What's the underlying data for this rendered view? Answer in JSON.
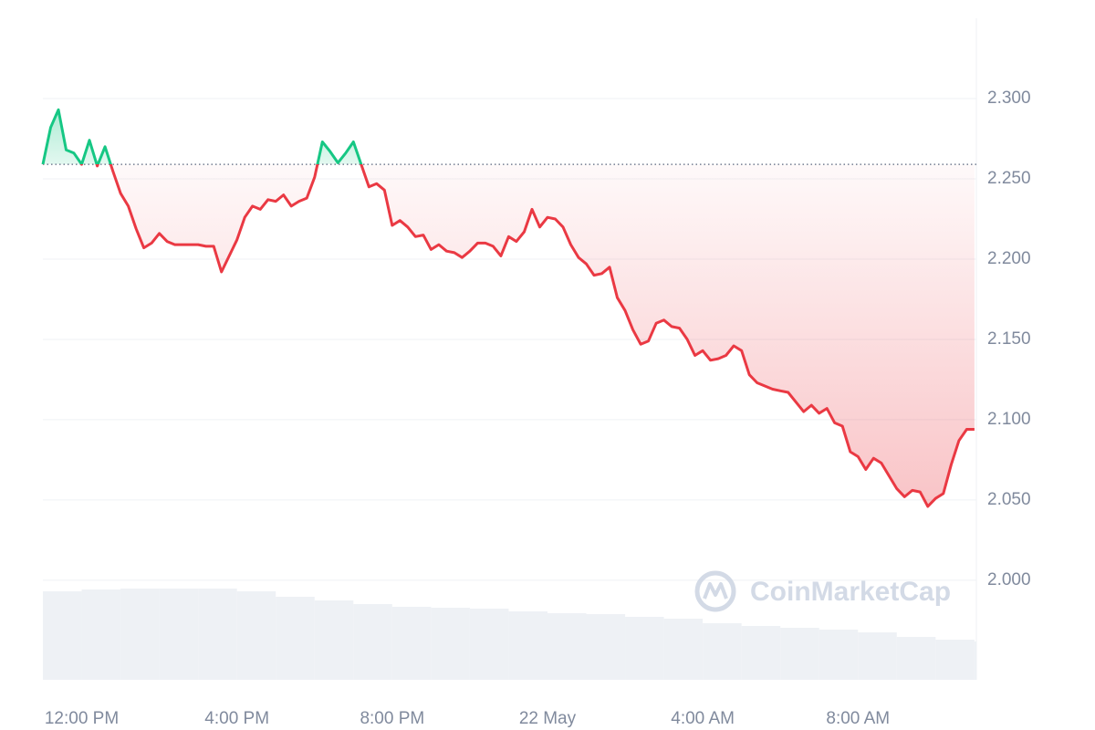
{
  "chart_data": {
    "type": "line",
    "x": [
      -1.0,
      -0.8,
      -0.6,
      -0.4,
      -0.2,
      0.0,
      0.2,
      0.4,
      0.6,
      0.8,
      1.0,
      1.2,
      1.4,
      1.6,
      1.8,
      2.0,
      2.2,
      2.4,
      2.6,
      2.8,
      3.0,
      3.2,
      3.4,
      3.6,
      3.8,
      4.0,
      4.2,
      4.4,
      4.6,
      4.8,
      5.0,
      5.2,
      5.4,
      5.6,
      5.8,
      6.0,
      6.2,
      6.4,
      6.6,
      6.8,
      7.0,
      7.2,
      7.4,
      7.6,
      7.8,
      8.0,
      8.2,
      8.4,
      8.6,
      8.8,
      9.0,
      9.2,
      9.4,
      9.6,
      9.8,
      10.0,
      10.2,
      10.4,
      10.6,
      10.8,
      11.0,
      11.2,
      11.4,
      11.6,
      11.8,
      12.0,
      12.2,
      12.4,
      12.6,
      12.8,
      13.0,
      13.2,
      13.4,
      13.6,
      13.8,
      14.0,
      14.2,
      14.4,
      14.6,
      14.8,
      15.0,
      15.2,
      15.4,
      15.6,
      15.8,
      16.0,
      16.2,
      16.4,
      16.6,
      16.8,
      17.0,
      17.2,
      17.4,
      17.6,
      17.8,
      18.0,
      18.2,
      18.4,
      18.6,
      18.8,
      19.0,
      19.2,
      19.4,
      19.6,
      19.8,
      20.0,
      20.2,
      20.4,
      20.6,
      20.8,
      21.0,
      21.2,
      21.4,
      21.6,
      21.8,
      22.0,
      22.2,
      22.4,
      22.6,
      22.8,
      23.0
    ],
    "values": [
      2.259,
      2.282,
      2.293,
      2.268,
      2.266,
      2.259,
      2.274,
      2.258,
      2.27,
      2.255,
      2.241,
      2.233,
      2.219,
      2.207,
      2.21,
      2.216,
      2.211,
      2.209,
      2.209,
      2.209,
      2.209,
      2.208,
      2.208,
      2.192,
      2.202,
      2.212,
      2.226,
      2.233,
      2.231,
      2.237,
      2.236,
      2.24,
      2.233,
      2.236,
      2.238,
      2.251,
      2.273,
      2.267,
      2.26,
      2.266,
      2.273,
      2.259,
      2.245,
      2.247,
      2.243,
      2.221,
      2.224,
      2.22,
      2.214,
      2.215,
      2.206,
      2.209,
      2.205,
      2.204,
      2.201,
      2.205,
      2.21,
      2.21,
      2.208,
      2.202,
      2.214,
      2.211,
      2.217,
      2.231,
      2.22,
      2.226,
      2.225,
      2.22,
      2.209,
      2.201,
      2.197,
      2.19,
      2.191,
      2.195,
      2.176,
      2.168,
      2.156,
      2.147,
      2.149,
      2.16,
      2.162,
      2.158,
      2.157,
      2.15,
      2.14,
      2.143,
      2.137,
      2.138,
      2.14,
      2.146,
      2.143,
      2.128,
      2.123,
      2.121,
      2.119,
      2.118,
      2.117,
      2.111,
      2.105,
      2.109,
      2.104,
      2.107,
      2.098,
      2.096,
      2.08,
      2.077,
      2.069,
      2.076,
      2.073,
      2.065,
      2.057,
      2.052,
      2.056,
      2.055,
      2.046,
      2.051,
      2.054,
      2.072,
      2.087,
      2.094,
      2.094
    ],
    "baseline": 2.259,
    "colors": {
      "up": "#16c784",
      "down": "#ea3943"
    },
    "xlim": [
      -1.0,
      23.05
    ],
    "xticks": [
      {
        "value": 0,
        "label": "12:00 PM"
      },
      {
        "value": 4,
        "label": "4:00 PM"
      },
      {
        "value": 8,
        "label": "8:00 PM"
      },
      {
        "value": 12,
        "label": "22 May"
      },
      {
        "value": 16,
        "label": "4:00 AM"
      },
      {
        "value": 20,
        "label": "8:00 AM"
      }
    ],
    "ylim": [
      1.938,
      2.35
    ],
    "yticks": [
      {
        "value": 2.0,
        "label": "2.000"
      },
      {
        "value": 2.05,
        "label": "2.050"
      },
      {
        "value": 2.1,
        "label": "2.100"
      },
      {
        "value": 2.15,
        "label": "2.150"
      },
      {
        "value": 2.2,
        "label": "2.200"
      },
      {
        "value": 2.25,
        "label": "2.250"
      },
      {
        "value": 2.3,
        "label": "2.300"
      }
    ],
    "grid": true,
    "volume": {
      "x": [
        -1,
        0,
        1,
        2,
        3,
        4,
        5,
        6,
        7,
        8,
        9,
        10,
        11,
        12,
        13,
        14,
        15,
        16,
        17,
        18,
        19,
        20,
        21,
        22,
        23
      ],
      "values": [
        97,
        99,
        100,
        100,
        100,
        97,
        91,
        87,
        83,
        80,
        79,
        78,
        75,
        73,
        72,
        69,
        67,
        62,
        59,
        57,
        55,
        52,
        47,
        44,
        42
      ],
      "color": "#eef1f5"
    },
    "y2lim": [
      0,
      725
    ],
    "watermark": "CoinMarketCap"
  }
}
